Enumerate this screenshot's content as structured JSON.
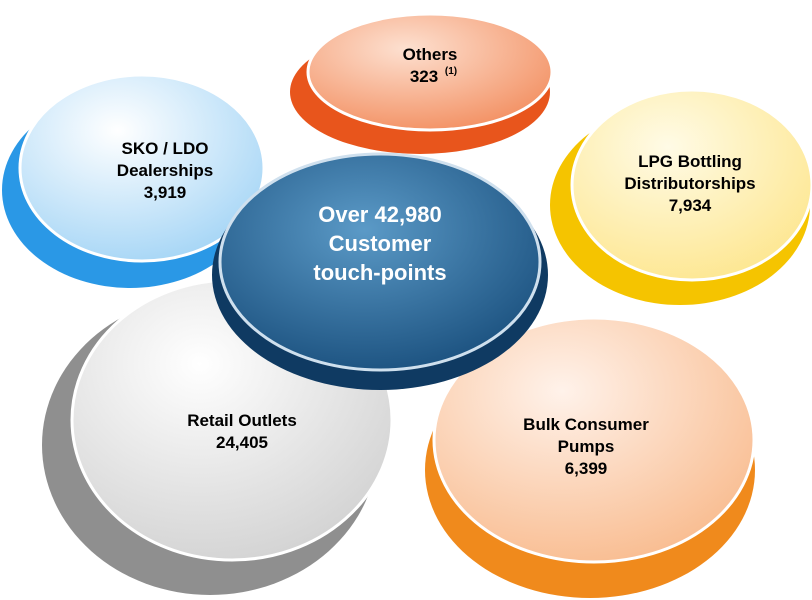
{
  "center": {
    "lines": [
      "Over 42,980",
      "Customer",
      "touch-points"
    ]
  },
  "nodes": [
    {
      "lines": [
        "Others"
      ],
      "value": "323",
      "note": "(1)"
    },
    {
      "lines": [
        "LPG Bottling",
        "Distributorships"
      ],
      "value": "7,934"
    },
    {
      "lines": [
        "SKO / LDO",
        "Dealerships"
      ],
      "value": "3,919"
    },
    {
      "lines": [
        "Retail Outlets"
      ],
      "value": "24,405"
    },
    {
      "lines": [
        "Bulk Consumer",
        "Pumps"
      ],
      "value": "6,399"
    }
  ]
}
